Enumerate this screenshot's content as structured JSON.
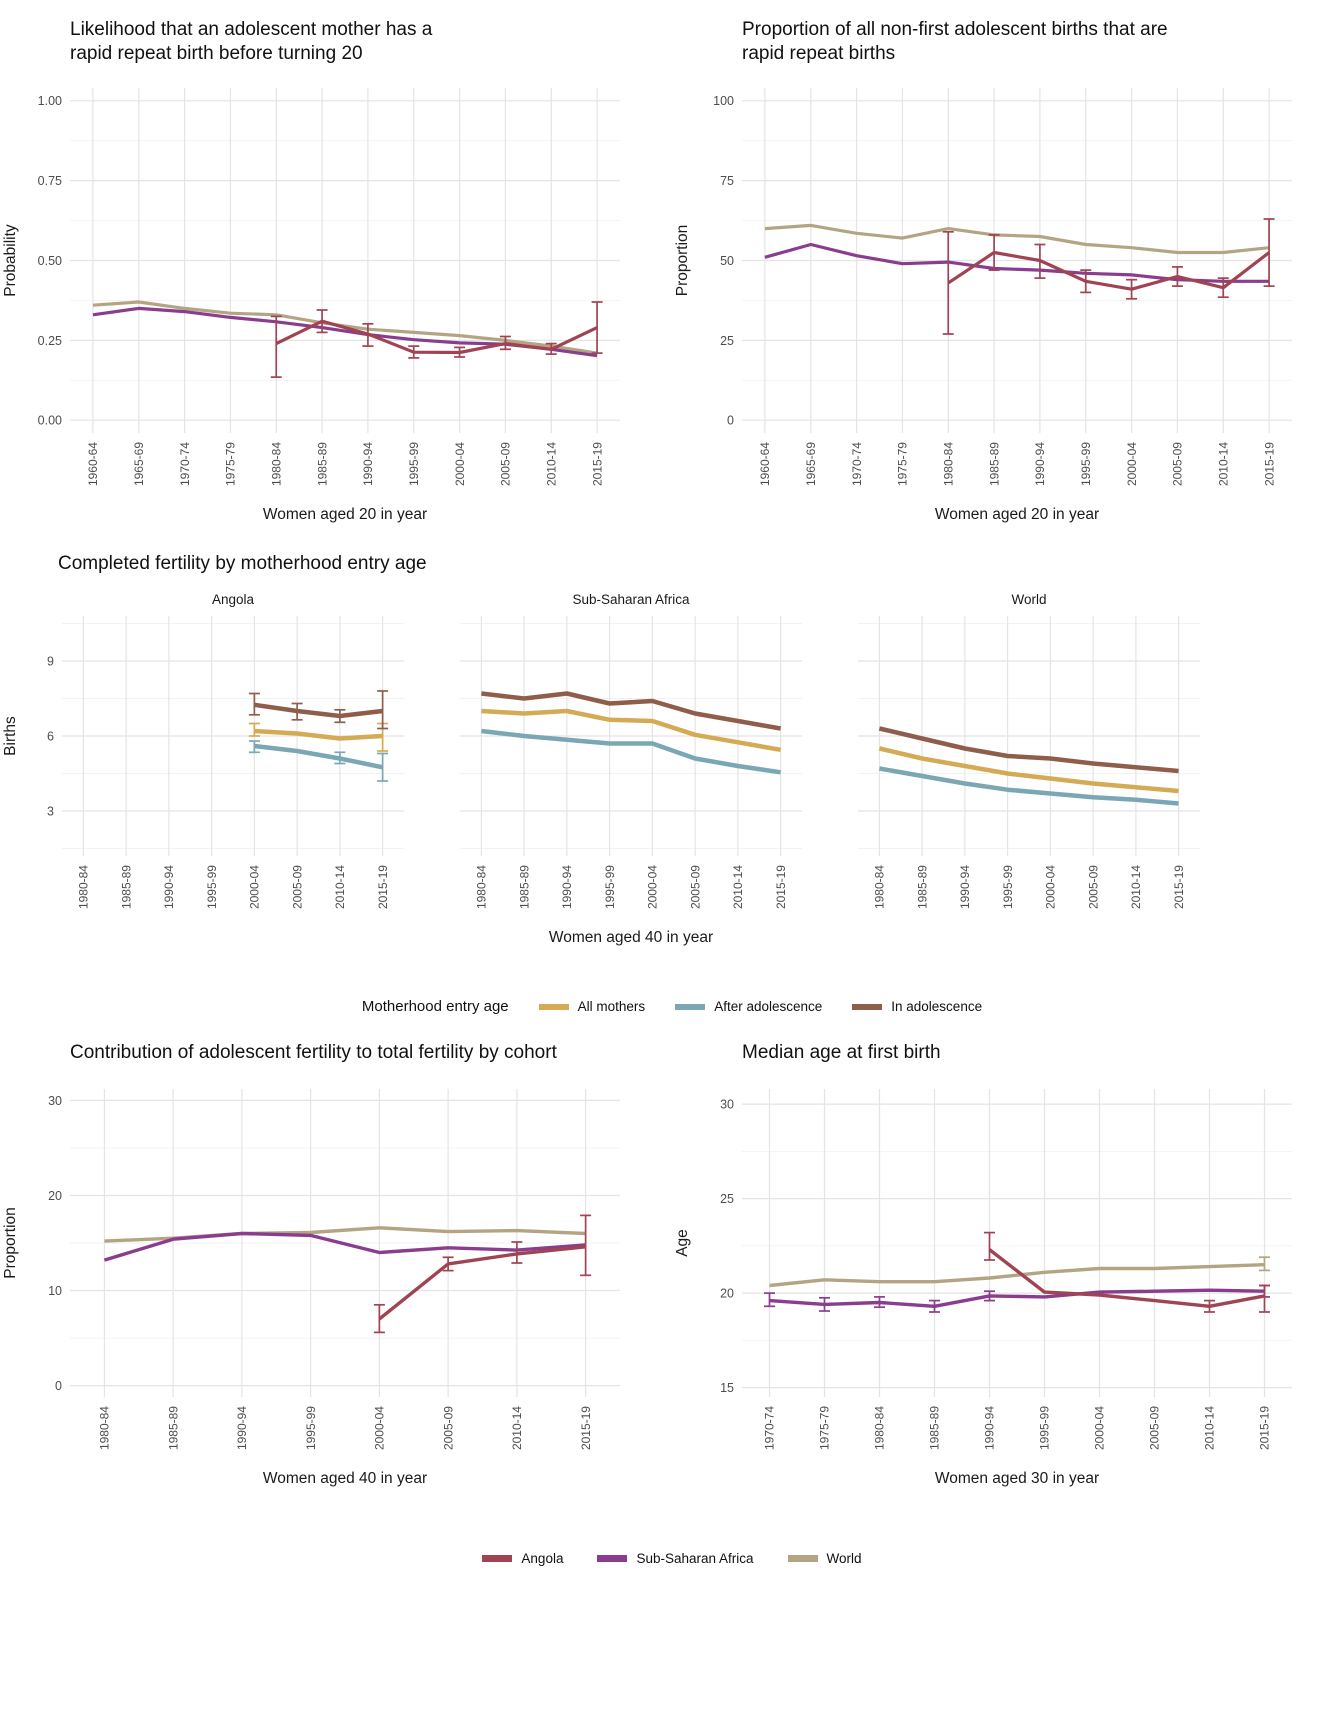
{
  "colors": {
    "angola": "#a04352",
    "sub_saharan_africa": "#8a3d8f",
    "world": "#b3a584",
    "all_mothers": "#d5aa55",
    "after_adolescence": "#7ba7b4",
    "in_adolescence": "#8f5e4b",
    "grid_major": "#e4e4e4",
    "grid_minor": "#f2f2f2",
    "tick_text": "#4d4d4d",
    "title_text": "#1a1a1a"
  },
  "legend_region": {
    "items": [
      {
        "key": "angola",
        "label": "Angola"
      },
      {
        "key": "sub_saharan_africa",
        "label": "Sub-Saharan Africa"
      },
      {
        "key": "world",
        "label": "World"
      }
    ]
  },
  "chart_data": [
    {
      "id": "rrb-probability",
      "type": "line",
      "title": "Likelihood that an adolescent mother has a\nrapid repeat birth before turning 20",
      "xlabel": "Women aged 20 in year",
      "ylabel": "Probability",
      "legend_position": "none",
      "grid": true,
      "categories": [
        "1960-64",
        "1965-69",
        "1970-74",
        "1975-79",
        "1980-84",
        "1985-89",
        "1990-94",
        "1995-99",
        "2000-04",
        "2005-09",
        "2010-14",
        "2015-19"
      ],
      "ylim": [
        -0.04,
        1.04
      ],
      "yticks": [
        0,
        0.25,
        0.5,
        0.75,
        1
      ],
      "ytick_labels": [
        "0.00",
        "0.25",
        "0.50",
        "0.75",
        "1.00"
      ],
      "series": [
        {
          "key": "world",
          "name": "World",
          "values": [
            0.36,
            0.37,
            0.35,
            0.335,
            0.33,
            0.305,
            0.285,
            0.275,
            0.265,
            0.25,
            0.232,
            0.21
          ]
        },
        {
          "key": "sub_saharan_africa",
          "name": "Sub-Saharan Africa",
          "values": [
            0.33,
            0.35,
            0.34,
            0.322,
            0.308,
            0.29,
            0.268,
            0.252,
            0.242,
            0.238,
            0.222,
            0.202
          ]
        },
        {
          "key": "angola",
          "name": "Angola",
          "values": [
            null,
            null,
            null,
            null,
            0.24,
            0.31,
            0.27,
            0.213,
            0.212,
            0.24,
            0.222,
            0.29
          ],
          "errors": [
            null,
            null,
            null,
            null,
            [
              0.135,
              0.325
            ],
            [
              0.275,
              0.345
            ],
            [
              0.232,
              0.302
            ],
            [
              0.195,
              0.232
            ],
            [
              0.198,
              0.228
            ],
            [
              0.222,
              0.262
            ],
            [
              0.207,
              0.24
            ],
            [
              0.21,
              0.37
            ]
          ]
        }
      ]
    },
    {
      "id": "rrb-proportion",
      "type": "line",
      "title": "Proportion of all non-first adolescent births that are\nrapid repeat births",
      "xlabel": "Women aged 20 in year",
      "ylabel": "Proportion",
      "legend_position": "none",
      "grid": true,
      "categories": [
        "1960-64",
        "1965-69",
        "1970-74",
        "1975-79",
        "1980-84",
        "1985-89",
        "1990-94",
        "1995-99",
        "2000-04",
        "2005-09",
        "2010-14",
        "2015-19"
      ],
      "ylim": [
        -4,
        104
      ],
      "yticks": [
        0,
        25,
        50,
        75,
        100
      ],
      "ytick_labels": [
        "0",
        "25",
        "50",
        "75",
        "100"
      ],
      "series": [
        {
          "key": "world",
          "name": "World",
          "values": [
            60,
            61,
            58.5,
            57,
            60,
            58,
            57.5,
            55,
            54,
            52.5,
            52.5,
            54
          ]
        },
        {
          "key": "sub_saharan_africa",
          "name": "Sub-Saharan Africa",
          "values": [
            51,
            55,
            51.5,
            49,
            49.5,
            47.5,
            47,
            46,
            45.5,
            44,
            43.5,
            43.5
          ]
        },
        {
          "key": "angola",
          "name": "Angola",
          "values": [
            null,
            null,
            null,
            null,
            43,
            52.5,
            50,
            43.5,
            41,
            45,
            41.5,
            52.5
          ],
          "errors": [
            null,
            null,
            null,
            null,
            [
              27,
              59
            ],
            [
              47,
              58
            ],
            [
              44.5,
              55
            ],
            [
              40,
              47
            ],
            [
              38,
              44
            ],
            [
              42,
              48
            ],
            [
              38.5,
              44.5
            ],
            [
              42,
              63
            ]
          ]
        }
      ]
    },
    {
      "id": "completed-fertility",
      "type": "line",
      "title": "Completed fertility by motherhood entry age",
      "xlabel": "Women aged 40 in year",
      "ylabel": "Births",
      "legend_position": "bottom",
      "grid": true,
      "categories": [
        "1980-84",
        "1985-89",
        "1990-94",
        "1995-99",
        "2000-04",
        "2005-09",
        "2010-14",
        "2015-19"
      ],
      "ylim": [
        1.2,
        10.8
      ],
      "yticks": [
        3,
        6,
        9
      ],
      "ytick_labels": [
        "3",
        "6",
        "9"
      ],
      "legend": {
        "title": "Motherhood entry age",
        "items": [
          {
            "key": "all_mothers",
            "label": "All mothers"
          },
          {
            "key": "after_adolescence",
            "label": "After adolescence"
          },
          {
            "key": "in_adolescence",
            "label": "In adolescence"
          }
        ]
      },
      "facets": [
        {
          "label": "Angola",
          "series": [
            {
              "key": "all_mothers",
              "name": "All mothers",
              "values": [
                null,
                null,
                null,
                null,
                6.2,
                6.1,
                5.9,
                6.0
              ],
              "errors": [
                null,
                null,
                null,
                null,
                [
                  6.0,
                  6.5
                ],
                null,
                null,
                [
                  5.4,
                  6.5
                ]
              ]
            },
            {
              "key": "after_adolescence",
              "name": "After adolescence",
              "values": [
                null,
                null,
                null,
                null,
                5.6,
                5.4,
                5.1,
                4.75
              ],
              "errors": [
                null,
                null,
                null,
                null,
                [
                  5.35,
                  5.8
                ],
                null,
                [
                  4.9,
                  5.35
                ],
                [
                  4.2,
                  5.3
                ]
              ]
            },
            {
              "key": "in_adolescence",
              "name": "In adolescence",
              "values": [
                null,
                null,
                null,
                null,
                7.25,
                7.0,
                6.8,
                7.0
              ],
              "errors": [
                null,
                null,
                null,
                null,
                [
                  6.85,
                  7.7
                ],
                [
                  6.65,
                  7.3
                ],
                [
                  6.55,
                  7.05
                ],
                [
                  6.3,
                  7.8
                ]
              ]
            }
          ]
        },
        {
          "label": "Sub-Saharan Africa",
          "series": [
            {
              "key": "all_mothers",
              "name": "All mothers",
              "values": [
                7.0,
                6.9,
                7.0,
                6.65,
                6.6,
                6.05,
                5.75,
                5.45
              ]
            },
            {
              "key": "after_adolescence",
              "name": "After adolescence",
              "values": [
                6.2,
                6.0,
                5.85,
                5.7,
                5.7,
                5.1,
                4.8,
                4.55
              ]
            },
            {
              "key": "in_adolescence",
              "name": "In adolescence",
              "values": [
                7.7,
                7.5,
                7.7,
                7.3,
                7.4,
                6.9,
                6.6,
                6.3
              ]
            }
          ]
        },
        {
          "label": "World",
          "series": [
            {
              "key": "all_mothers",
              "name": "All mothers",
              "values": [
                5.5,
                5.1,
                4.8,
                4.5,
                4.3,
                4.1,
                3.95,
                3.8
              ]
            },
            {
              "key": "after_adolescence",
              "name": "After adolescence",
              "values": [
                4.7,
                4.4,
                4.1,
                3.85,
                3.7,
                3.55,
                3.45,
                3.3
              ]
            },
            {
              "key": "in_adolescence",
              "name": "In adolescence",
              "values": [
                6.3,
                5.9,
                5.5,
                5.2,
                5.1,
                4.9,
                4.75,
                4.6
              ]
            }
          ]
        }
      ]
    },
    {
      "id": "adolescent-contribution",
      "type": "line",
      "title": "Contribution of adolescent fertility to total fertility by cohort",
      "xlabel": "Women aged 40 in year",
      "ylabel": "Proportion",
      "legend_position": "bottom-shared",
      "grid": true,
      "categories": [
        "1980-84",
        "1985-89",
        "1990-94",
        "1995-99",
        "2000-04",
        "2005-09",
        "2010-14",
        "2015-19"
      ],
      "ylim": [
        -1.2,
        31.2
      ],
      "yticks": [
        0,
        10,
        20,
        30
      ],
      "ytick_labels": [
        "0",
        "10",
        "20",
        "30"
      ],
      "series": [
        {
          "key": "world",
          "name": "World",
          "values": [
            15.2,
            15.5,
            16.0,
            16.1,
            16.6,
            16.2,
            16.3,
            16.0
          ]
        },
        {
          "key": "sub_saharan_africa",
          "name": "Sub-Saharan Africa",
          "values": [
            13.2,
            15.4,
            16.0,
            15.8,
            14.0,
            14.5,
            14.25,
            14.8
          ]
        },
        {
          "key": "angola",
          "name": "Angola",
          "values": [
            null,
            null,
            null,
            null,
            7.0,
            12.8,
            13.85,
            14.6
          ],
          "errors": [
            null,
            null,
            null,
            null,
            [
              5.6,
              8.5
            ],
            [
              12.1,
              13.5
            ],
            [
              12.9,
              15.1
            ],
            [
              11.6,
              17.9
            ]
          ]
        }
      ]
    },
    {
      "id": "median-age-first-birth",
      "type": "line",
      "title": "Median age at first birth",
      "xlabel": "Women aged 30 in year",
      "ylabel": "Age",
      "legend_position": "bottom-shared",
      "grid": true,
      "categories": [
        "1970-74",
        "1975-79",
        "1980-84",
        "1985-89",
        "1990-94",
        "1995-99",
        "2000-04",
        "2005-09",
        "2010-14",
        "2015-19"
      ],
      "ylim": [
        14.5,
        30.8
      ],
      "yticks": [
        15,
        20,
        25,
        30
      ],
      "ytick_labels": [
        "15",
        "20",
        "25",
        "30"
      ],
      "series": [
        {
          "key": "world",
          "name": "World",
          "values": [
            20.4,
            20.7,
            20.6,
            20.6,
            20.8,
            21.1,
            21.3,
            21.3,
            21.4,
            21.5
          ],
          "errors": [
            null,
            null,
            null,
            null,
            null,
            null,
            null,
            null,
            null,
            [
              21.2,
              21.9
            ]
          ]
        },
        {
          "key": "sub_saharan_africa",
          "name": "Sub-Saharan Africa",
          "values": [
            19.6,
            19.4,
            19.5,
            19.3,
            19.85,
            19.8,
            20.05,
            20.1,
            20.15,
            20.1
          ],
          "errors": [
            [
              19.3,
              20.0
            ],
            [
              19.05,
              19.75
            ],
            [
              19.25,
              19.8
            ],
            [
              19.0,
              19.6
            ],
            [
              19.6,
              20.1
            ],
            null,
            null,
            null,
            null,
            [
              19.8,
              20.4
            ]
          ]
        },
        {
          "key": "angola",
          "name": "Angola",
          "values": [
            null,
            null,
            null,
            null,
            22.3,
            20.05,
            19.9,
            19.6,
            19.3,
            19.85
          ],
          "errors": [
            null,
            null,
            null,
            null,
            [
              21.75,
              23.2
            ],
            null,
            null,
            null,
            [
              19.0,
              19.6
            ],
            [
              19.0,
              20.4
            ]
          ]
        }
      ]
    }
  ]
}
